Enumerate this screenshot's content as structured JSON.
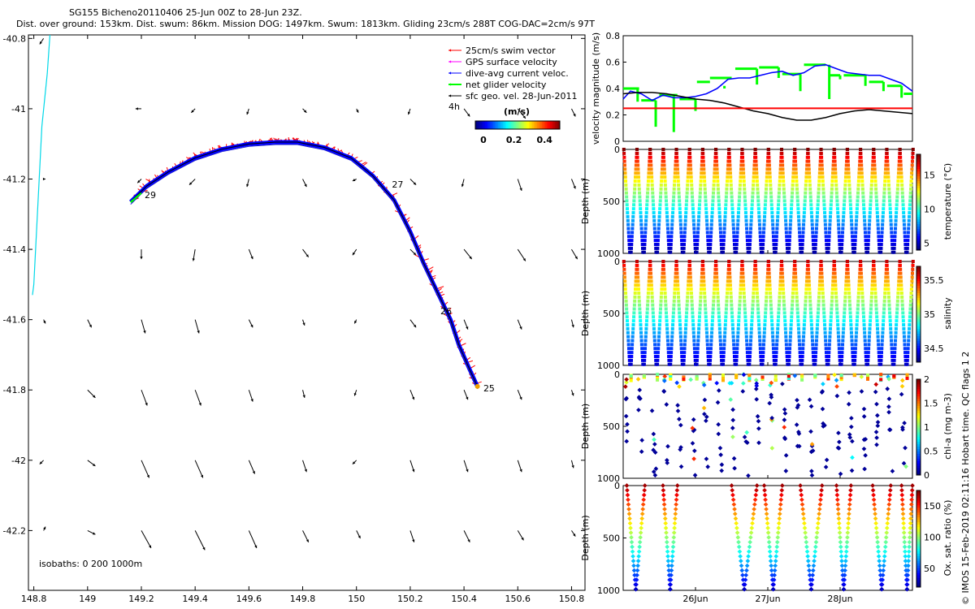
{
  "title_line1": "SG155 Bicheno20110406 25-Jun 00Z to 28-Jun 23Z.",
  "title_line2": "Dist. over ground: 153km. Dist. swum: 86km. Mission DOG: 1497km. Swum: 1813km. Gliding 23cm/s 288T COG-DAC=2cm/s 97T",
  "credit": "© IMOS 15-Feb-2019 02:11:16 Hobart time. QC flags 1  2",
  "colors": {
    "swim": "#ff0000",
    "gps": "#ff00ff",
    "dac": "#0000ff",
    "net": "#00ff00",
    "geo": "#000000",
    "coast": "#00d8e8",
    "ref_line": "#ff0000"
  },
  "chart_data": [
    {
      "id": "map",
      "type": "scatter",
      "x_ticks": [
        "148.8",
        "149",
        "149.2",
        "149.4",
        "149.6",
        "149.8",
        "150",
        "150.2",
        "150.4",
        "150.6",
        "150.8"
      ],
      "y_ticks": [
        "-40.8",
        "-41",
        "-41.2",
        "-41.4",
        "-41.6",
        "-41.8",
        "-42",
        "-42.2"
      ],
      "xlim": [
        148.78,
        150.85
      ],
      "ylim": [
        -42.37,
        -40.79
      ],
      "legend": {
        "position": "top-right",
        "items": [
          {
            "label": "25cm/s swim vector",
            "color": "#ff0000"
          },
          {
            "label": "GPS surface velocity",
            "color": "#ff00ff"
          },
          {
            "label": "dive-avg current veloc.",
            "color": "#0000ff"
          },
          {
            "label": "net glider velocity",
            "color": "#00ff00"
          },
          {
            "label": "sfc geo. vel. 28-Jun-2011",
            "color": "#000000"
          }
        ],
        "scale_label": "4h"
      },
      "colorbar": {
        "label": "(m/s)",
        "ticks": [
          "0",
          "0.2",
          "0.4"
        ]
      },
      "isobaths_label": "isobaths: 0   200   1000m",
      "track": [
        [
          149.16,
          -41.265
        ],
        [
          149.22,
          -41.22
        ],
        [
          149.3,
          -41.18
        ],
        [
          149.4,
          -41.14
        ],
        [
          149.5,
          -41.115
        ],
        [
          149.6,
          -41.1
        ],
        [
          149.7,
          -41.095
        ],
        [
          149.78,
          -41.095
        ],
        [
          149.88,
          -41.11
        ],
        [
          149.98,
          -41.14
        ],
        [
          150.06,
          -41.19
        ],
        [
          150.14,
          -41.26
        ],
        [
          150.2,
          -41.35
        ],
        [
          150.25,
          -41.44
        ],
        [
          150.3,
          -41.52
        ],
        [
          150.35,
          -41.6
        ],
        [
          150.38,
          -41.67
        ],
        [
          150.42,
          -41.74
        ],
        [
          150.45,
          -41.79
        ]
      ],
      "day_labels": [
        {
          "text": "29",
          "lon": 149.2,
          "lat": -41.245
        },
        {
          "text": "27",
          "lon": 150.12,
          "lat": -41.215
        },
        {
          "text": "26",
          "lon": 150.3,
          "lat": -41.575
        },
        {
          "text": "25",
          "lon": 150.46,
          "lat": -41.795
        }
      ],
      "geo_vectors_u_v": [
        [
          [
            -2,
            -3
          ],
          [
            0,
            0
          ],
          [
            0,
            0
          ],
          [
            0,
            0
          ],
          [
            0,
            0
          ],
          [
            0,
            0
          ],
          [
            0,
            0
          ],
          [
            0,
            0
          ],
          [
            0,
            0
          ],
          [
            0,
            0
          ],
          [
            0,
            0
          ]
        ],
        [
          [
            0,
            0
          ],
          [
            0,
            0
          ],
          [
            -3,
            0
          ],
          [
            -2,
            -2
          ],
          [
            -1,
            -3
          ],
          [
            2,
            -2
          ],
          [
            1,
            -2
          ],
          [
            -1,
            -3
          ],
          [
            3,
            -4
          ],
          [
            4,
            -5
          ],
          [
            2,
            -4
          ]
        ],
        [
          [
            1,
            0
          ],
          [
            0,
            0
          ],
          [
            -2,
            -2
          ],
          [
            -3,
            -3
          ],
          [
            -1,
            -4
          ],
          [
            2,
            -4
          ],
          [
            -2,
            -1
          ],
          [
            3,
            -3
          ],
          [
            -1,
            -4
          ],
          [
            2,
            -6
          ],
          [
            2,
            -5
          ]
        ],
        [
          [
            0,
            0
          ],
          [
            0,
            0
          ],
          [
            0,
            -5
          ],
          [
            -1,
            -6
          ],
          [
            2,
            -5
          ],
          [
            3,
            -4
          ],
          [
            -2,
            -3
          ],
          [
            3,
            -3
          ],
          [
            4,
            -5
          ],
          [
            4,
            -6
          ],
          [
            3,
            -5
          ]
        ],
        [
          [
            1,
            -2
          ],
          [
            2,
            -4
          ],
          [
            2,
            -7
          ],
          [
            2,
            -7
          ],
          [
            2,
            -4
          ],
          [
            1,
            -3
          ],
          [
            -1,
            -2
          ],
          [
            3,
            -4
          ],
          [
            2,
            -5
          ],
          [
            2,
            -5
          ],
          [
            1,
            -4
          ]
        ],
        [
          [
            0,
            0
          ],
          [
            4,
            -4
          ],
          [
            3,
            -8
          ],
          [
            3,
            -8
          ],
          [
            2,
            -6
          ],
          [
            1,
            -4
          ],
          [
            -1,
            -3
          ],
          [
            2,
            -5
          ],
          [
            2,
            -5
          ],
          [
            2,
            -5
          ],
          [
            1,
            -3
          ]
        ],
        [
          [
            -2,
            -2
          ],
          [
            4,
            -3
          ],
          [
            4,
            -9
          ],
          [
            4,
            -9
          ],
          [
            3,
            -7
          ],
          [
            2,
            -6
          ],
          [
            -2,
            -2
          ],
          [
            2,
            -6
          ],
          [
            2,
            -6
          ],
          [
            2,
            -6
          ],
          [
            1,
            -4
          ]
        ],
        [
          [
            1,
            2
          ],
          [
            4,
            -2
          ],
          [
            5,
            -9
          ],
          [
            5,
            -10
          ],
          [
            4,
            -9
          ],
          [
            3,
            -6
          ],
          [
            2,
            -4
          ],
          [
            2,
            -6
          ],
          [
            3,
            -6
          ],
          [
            3,
            -5
          ],
          [
            2,
            -3
          ]
        ]
      ]
    },
    {
      "id": "velocity",
      "type": "line",
      "ylabel": "velocity magnitude (m/s)",
      "y_ticks": [
        "0",
        "0.2",
        "0.4",
        "0.6",
        "0.8"
      ],
      "ylim": [
        0,
        0.8
      ],
      "xlim": [
        25.0,
        29.0
      ],
      "series": [
        {
          "color": "#0000ff",
          "x": [
            25.0,
            25.1,
            25.25,
            25.4,
            25.55,
            25.7,
            25.85,
            26.0,
            26.15,
            26.3,
            26.45,
            26.6,
            26.75,
            26.9,
            27.05,
            27.2,
            27.35,
            27.5,
            27.65,
            27.8,
            27.95,
            28.1,
            28.25,
            28.4,
            28.55,
            28.7,
            28.85,
            29.0
          ],
          "y": [
            0.32,
            0.38,
            0.36,
            0.31,
            0.35,
            0.33,
            0.33,
            0.34,
            0.36,
            0.4,
            0.47,
            0.48,
            0.48,
            0.5,
            0.52,
            0.53,
            0.5,
            0.52,
            0.57,
            0.58,
            0.55,
            0.52,
            0.51,
            0.5,
            0.5,
            0.47,
            0.44,
            0.38
          ]
        },
        {
          "color": "#000000",
          "x": [
            25.0,
            25.2,
            25.4,
            25.6,
            25.8,
            26.0,
            26.2,
            26.4,
            26.6,
            26.8,
            27.0,
            27.2,
            27.4,
            27.5,
            27.6,
            27.8,
            28.0,
            28.2,
            28.4,
            28.6,
            28.8,
            29.0
          ],
          "y": [
            0.36,
            0.37,
            0.37,
            0.36,
            0.34,
            0.32,
            0.31,
            0.29,
            0.26,
            0.23,
            0.21,
            0.18,
            0.16,
            0.16,
            0.16,
            0.18,
            0.21,
            0.23,
            0.24,
            0.23,
            0.22,
            0.21
          ]
        },
        {
          "color": "#ff0000",
          "x": [
            25.0,
            29.0
          ],
          "y": [
            0.25,
            0.25
          ]
        }
      ],
      "net_segments": [
        [
          25.0,
          25.22,
          0.4
        ],
        [
          25.25,
          25.45,
          0.31
        ],
        [
          25.5,
          25.75,
          0.35
        ],
        [
          25.78,
          26.0,
          0.32
        ],
        [
          26.02,
          26.2,
          0.45
        ],
        [
          26.2,
          26.5,
          0.48
        ],
        [
          26.55,
          26.85,
          0.55
        ],
        [
          26.88,
          27.15,
          0.56
        ],
        [
          27.2,
          27.45,
          0.51
        ],
        [
          27.5,
          27.8,
          0.58
        ],
        [
          27.85,
          28.0,
          0.5
        ],
        [
          28.05,
          28.35,
          0.5
        ],
        [
          28.4,
          28.6,
          0.45
        ],
        [
          28.65,
          28.85,
          0.42
        ],
        [
          28.88,
          29.0,
          0.36
        ]
      ],
      "net_drops": [
        [
          25.2,
          0.3
        ],
        [
          25.45,
          0.11
        ],
        [
          25.7,
          0.07
        ],
        [
          26.0,
          0.23
        ],
        [
          26.4,
          0.42
        ],
        [
          26.85,
          0.43
        ],
        [
          27.15,
          0.48
        ],
        [
          27.45,
          0.38
        ],
        [
          27.85,
          0.32
        ],
        [
          28.0,
          0.47
        ],
        [
          28.35,
          0.42
        ],
        [
          28.6,
          0.38
        ],
        [
          28.85,
          0.33
        ]
      ]
    },
    {
      "id": "temperature",
      "type": "scatter",
      "ylabel": "Depth (m)",
      "y_ticks": [
        "0",
        "500",
        "1000"
      ],
      "ylim": [
        0,
        1000
      ],
      "colorbar_label": "temperature (°C)",
      "colorbar_ticks": [
        "5",
        "10",
        "15"
      ],
      "color_range": [
        4,
        18
      ],
      "profiles": 22,
      "surface_value": 18,
      "bottom_value": 4.5
    },
    {
      "id": "salinity",
      "type": "scatter",
      "ylabel": "Depth (m)",
      "y_ticks": [
        "0",
        "500",
        "1000"
      ],
      "ylim": [
        0,
        1000
      ],
      "colorbar_label": "salinity",
      "colorbar_ticks": [
        "34.5",
        "35",
        "35.5"
      ],
      "color_range": [
        34.3,
        35.7
      ],
      "profiles": 22,
      "surface_value": 35.6,
      "bottom_value": 34.4
    },
    {
      "id": "chla",
      "type": "scatter",
      "ylabel": "Depth (m)",
      "y_ticks": [
        "0",
        "500",
        "1000"
      ],
      "ylim": [
        0,
        1000
      ],
      "colorbar_label": "chl-a (mg m-3)",
      "colorbar_ticks": [
        "0",
        "0.5",
        "1",
        "1.5",
        "2"
      ],
      "color_range": [
        0,
        2
      ],
      "profiles": 22
    },
    {
      "id": "oxygen",
      "type": "scatter",
      "ylabel": "Depth (m)",
      "y_ticks": [
        "0",
        "500",
        "1000"
      ],
      "ylim": [
        0,
        1000
      ],
      "colorbar_label": "Ox. sat. ratio (%)",
      "colorbar_ticks": [
        "50",
        "100",
        "150"
      ],
      "color_range": [
        20,
        175
      ],
      "x_ticks": [
        "26Jun",
        "27Jun",
        "28Jun"
      ],
      "x_tick_days": [
        26,
        27,
        28
      ],
      "vees": [
        [
          25.05,
          25.3
        ],
        [
          25.55,
          25.75
        ],
        [
          26.5,
          26.85
        ],
        [
          26.95,
          27.2
        ],
        [
          27.45,
          27.75
        ],
        [
          27.95,
          28.15
        ],
        [
          28.45,
          28.7
        ],
        [
          28.85,
          29.0
        ]
      ]
    }
  ]
}
